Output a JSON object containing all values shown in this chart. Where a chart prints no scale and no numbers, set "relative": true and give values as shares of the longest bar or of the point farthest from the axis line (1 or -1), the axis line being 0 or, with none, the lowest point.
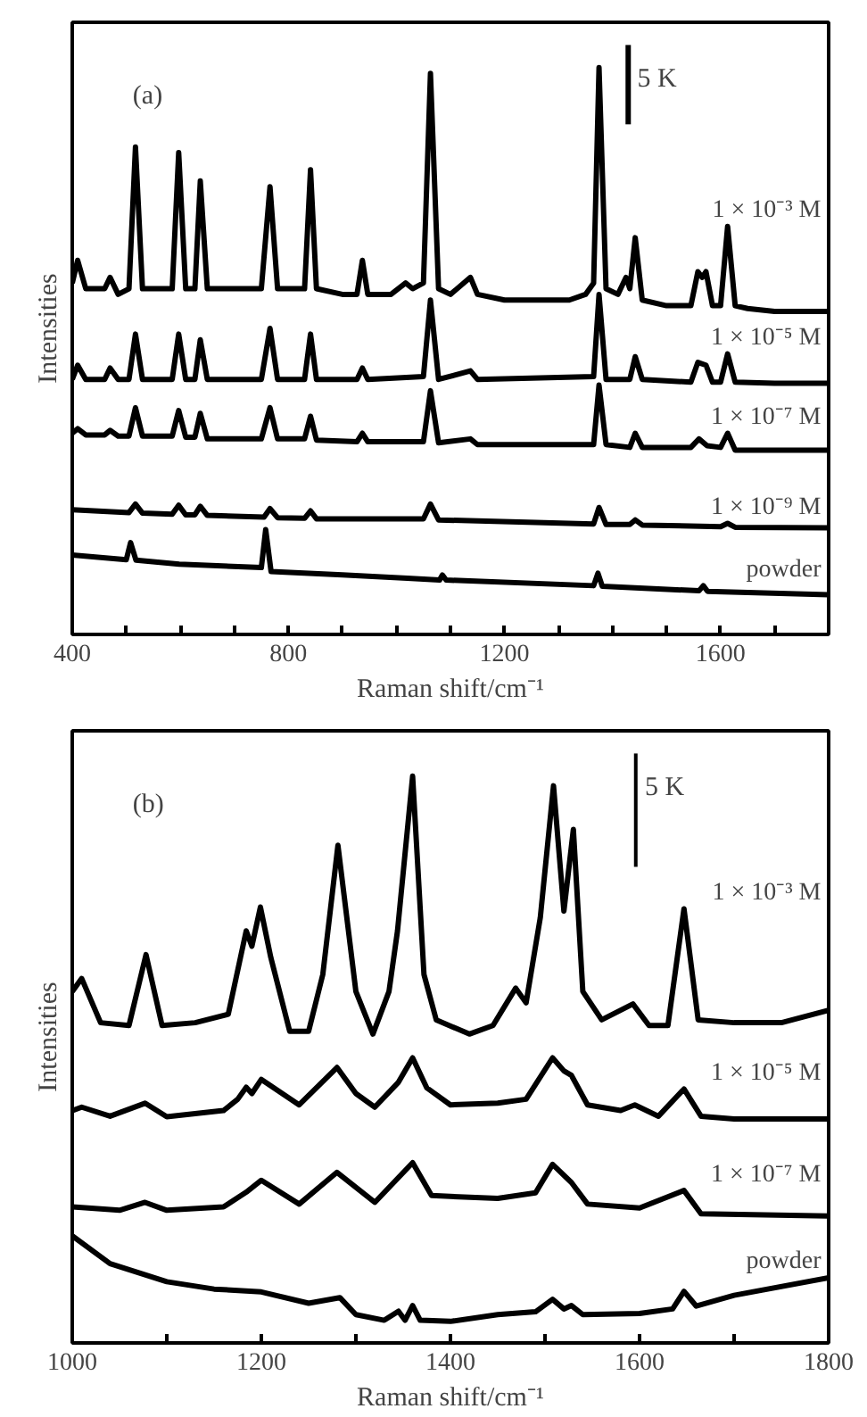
{
  "chart_data": [
    {
      "type": "line",
      "relative": true,
      "xlabel": "Raman shift/cm⁻¹",
      "ylabel": "Intensities",
      "xlim": [
        400,
        1800
      ],
      "tick_labels": "x",
      "grid": false,
      "annotations": [
        "(a)",
        "5 K"
      ],
      "xticks": [
        400,
        {
          "value": 500,
          "label": null
        },
        {
          "value": 600,
          "label": null
        },
        {
          "value": 700,
          "label": null
        },
        800,
        {
          "value": 900,
          "label": null
        },
        {
          "value": 1000,
          "label": null
        },
        {
          "value": 1100,
          "label": null
        },
        1200,
        {
          "value": 1300,
          "label": null
        },
        {
          "value": 1400,
          "label": null
        },
        {
          "value": 1500,
          "label": null
        },
        1600,
        {
          "value": 1700,
          "label": null
        }
      ],
      "series": [
        {
          "name": "1 × 10⁻³ M",
          "color": "#000000",
          "x": [
            400,
            410,
            425,
            460,
            470,
            485,
            505,
            517,
            530,
            585,
            597,
            610,
            627,
            637,
            650,
            700,
            750,
            766,
            780,
            800,
            830,
            841,
            852,
            900,
            927,
            937,
            947,
            990,
            1017,
            1030,
            1050,
            1063,
            1078,
            1100,
            1137,
            1150,
            1200,
            1250,
            1280,
            1320,
            1350,
            1365,
            1375,
            1388,
            1410,
            1425,
            1432,
            1442,
            1455,
            1500,
            1545,
            1558,
            1566,
            1573,
            1585,
            1600,
            1613,
            1627,
            1650,
            1700,
            1800
          ],
          "values": [
            0.62,
            0.66,
            0.61,
            0.61,
            0.63,
            0.6,
            0.61,
            0.86,
            0.61,
            0.61,
            0.85,
            0.61,
            0.61,
            0.8,
            0.61,
            0.61,
            0.61,
            0.79,
            0.61,
            0.61,
            0.61,
            0.82,
            0.61,
            0.6,
            0.6,
            0.66,
            0.6,
            0.6,
            0.62,
            0.61,
            0.62,
            0.99,
            0.61,
            0.6,
            0.63,
            0.6,
            0.59,
            0.59,
            0.59,
            0.59,
            0.6,
            0.62,
            1.0,
            0.61,
            0.6,
            0.63,
            0.61,
            0.7,
            0.59,
            0.58,
            0.58,
            0.64,
            0.63,
            0.64,
            0.58,
            0.58,
            0.72,
            0.58,
            0.575,
            0.57,
            0.57
          ]
        },
        {
          "name": "1 × 10⁻⁵ M",
          "color": "#000000",
          "x": [
            400,
            410,
            425,
            460,
            470,
            485,
            505,
            517,
            530,
            585,
            597,
            610,
            627,
            637,
            650,
            750,
            766,
            780,
            830,
            841,
            852,
            927,
            937,
            947,
            1050,
            1063,
            1078,
            1137,
            1150,
            1365,
            1375,
            1388,
            1432,
            1442,
            1455,
            1545,
            1558,
            1573,
            1585,
            1600,
            1613,
            1627,
            1700,
            1800
          ],
          "values": [
            0.45,
            0.475,
            0.45,
            0.45,
            0.47,
            0.45,
            0.45,
            0.53,
            0.45,
            0.45,
            0.53,
            0.45,
            0.45,
            0.52,
            0.45,
            0.45,
            0.54,
            0.45,
            0.45,
            0.53,
            0.45,
            0.45,
            0.47,
            0.45,
            0.455,
            0.59,
            0.45,
            0.465,
            0.45,
            0.455,
            0.6,
            0.45,
            0.45,
            0.49,
            0.45,
            0.445,
            0.48,
            0.475,
            0.445,
            0.445,
            0.495,
            0.445,
            0.443,
            0.443
          ]
        },
        {
          "name": "1 × 10⁻⁷ M",
          "color": "#000000",
          "x": [
            400,
            410,
            425,
            460,
            470,
            485,
            505,
            517,
            530,
            585,
            597,
            610,
            627,
            637,
            650,
            750,
            766,
            780,
            830,
            841,
            852,
            927,
            937,
            947,
            1050,
            1063,
            1078,
            1137,
            1150,
            1365,
            1375,
            1388,
            1432,
            1442,
            1455,
            1545,
            1560,
            1575,
            1600,
            1613,
            1627,
            1700,
            1800
          ],
          "values": [
            0.355,
            0.363,
            0.352,
            0.352,
            0.36,
            0.35,
            0.35,
            0.4,
            0.35,
            0.35,
            0.395,
            0.348,
            0.348,
            0.39,
            0.345,
            0.345,
            0.4,
            0.345,
            0.345,
            0.385,
            0.343,
            0.34,
            0.355,
            0.34,
            0.34,
            0.43,
            0.338,
            0.345,
            0.335,
            0.335,
            0.44,
            0.335,
            0.33,
            0.355,
            0.33,
            0.33,
            0.345,
            0.333,
            0.33,
            0.355,
            0.325,
            0.325,
            0.325
          ]
        },
        {
          "name": "1 × 10⁻⁹ M",
          "color": "#000000",
          "x": [
            400,
            505,
            517,
            530,
            585,
            597,
            610,
            627,
            637,
            650,
            755,
            766,
            780,
            830,
            841,
            852,
            1050,
            1063,
            1078,
            1365,
            1375,
            1388,
            1432,
            1442,
            1455,
            1600,
            1613,
            1627,
            1800
          ],
          "values": [
            0.22,
            0.215,
            0.23,
            0.214,
            0.212,
            0.228,
            0.211,
            0.211,
            0.226,
            0.21,
            0.207,
            0.222,
            0.206,
            0.205,
            0.218,
            0.204,
            0.204,
            0.23,
            0.202,
            0.195,
            0.224,
            0.194,
            0.194,
            0.202,
            0.193,
            0.19,
            0.196,
            0.189,
            0.188
          ]
        },
        {
          "name": "powder",
          "color": "#000000",
          "x": [
            400,
            500,
            508,
            518,
            598,
            750,
            758,
            768,
            900,
            1020,
            1080,
            1085,
            1092,
            1365,
            1373,
            1381,
            1560,
            1568,
            1576,
            1800
          ],
          "values": [
            0.14,
            0.132,
            0.162,
            0.131,
            0.124,
            0.118,
            0.185,
            0.111,
            0.105,
            0.099,
            0.096,
            0.105,
            0.096,
            0.086,
            0.108,
            0.085,
            0.077,
            0.086,
            0.076,
            0.07
          ]
        }
      ]
    },
    {
      "type": "line",
      "relative": true,
      "xlabel": "Raman shift/cm⁻¹",
      "ylabel": "Intensities",
      "xlim": [
        1000,
        1800
      ],
      "tick_labels": "x",
      "grid": false,
      "annotations": [
        "(b)",
        "5 K"
      ],
      "xticks": [
        1000,
        {
          "value": 1100,
          "label": null
        },
        1200,
        {
          "value": 1300,
          "label": null
        },
        1400,
        {
          "value": 1500,
          "label": null
        },
        1600,
        {
          "value": 1700,
          "label": null
        },
        1800
      ],
      "series": [
        {
          "name": "1 × 10⁻³ M",
          "color": "#000000",
          "x": [
            1000,
            1010,
            1030,
            1060,
            1078,
            1095,
            1130,
            1165,
            1184,
            1190,
            1199,
            1210,
            1230,
            1250,
            1265,
            1281,
            1300,
            1318,
            1335,
            1344,
            1360,
            1372,
            1385,
            1420,
            1445,
            1469,
            1480,
            1495,
            1509,
            1520,
            1530,
            1540,
            1560,
            1593,
            1610,
            1630,
            1647,
            1662,
            1700,
            1750,
            1800
          ],
          "values": [
            0.62,
            0.643,
            0.565,
            0.56,
            0.685,
            0.56,
            0.565,
            0.58,
            0.727,
            0.7,
            0.769,
            0.68,
            0.55,
            0.55,
            0.65,
            0.878,
            0.62,
            0.545,
            0.62,
            0.727,
            1.0,
            0.65,
            0.57,
            0.545,
            0.56,
            0.626,
            0.6,
            0.75,
            0.983,
            0.762,
            0.906,
            0.62,
            0.57,
            0.598,
            0.56,
            0.56,
            0.766,
            0.57,
            0.565,
            0.565,
            0.587
          ]
        },
        {
          "name": "1 × 10⁻⁵ M",
          "color": "#000000",
          "x": [
            1000,
            1010,
            1040,
            1077,
            1100,
            1160,
            1175,
            1184,
            1190,
            1200,
            1240,
            1280,
            1300,
            1320,
            1345,
            1360,
            1375,
            1400,
            1450,
            1480,
            1508,
            1520,
            1528,
            1545,
            1580,
            1595,
            1620,
            1647,
            1665,
            1700,
            1800
          ],
          "values": [
            0.41,
            0.416,
            0.4,
            0.423,
            0.399,
            0.41,
            0.43,
            0.451,
            0.44,
            0.465,
            0.42,
            0.486,
            0.44,
            0.416,
            0.46,
            0.503,
            0.45,
            0.42,
            0.423,
            0.43,
            0.503,
            0.48,
            0.472,
            0.42,
            0.41,
            0.42,
            0.4,
            0.448,
            0.4,
            0.395,
            0.395
          ]
        },
        {
          "name": "1 × 10⁻⁷ M",
          "color": "#000000",
          "x": [
            1000,
            1050,
            1077,
            1100,
            1160,
            1184,
            1200,
            1240,
            1280,
            1320,
            1360,
            1380,
            1450,
            1490,
            1508,
            1528,
            1545,
            1600,
            1647,
            1665,
            1800
          ],
          "values": [
            0.24,
            0.234,
            0.248,
            0.234,
            0.24,
            0.266,
            0.287,
            0.245,
            0.301,
            0.248,
            0.318,
            0.26,
            0.255,
            0.265,
            0.315,
            0.283,
            0.245,
            0.238,
            0.269,
            0.228,
            0.224
          ]
        },
        {
          "name": "powder",
          "color": "#000000",
          "x": [
            1000,
            1040,
            1100,
            1150,
            1200,
            1250,
            1283,
            1300,
            1330,
            1345,
            1352,
            1360,
            1368,
            1400,
            1450,
            1490,
            1508,
            1520,
            1528,
            1540,
            1600,
            1635,
            1647,
            1660,
            1700,
            1800
          ],
          "values": [
            0.189,
            0.14,
            0.108,
            0.095,
            0.09,
            0.07,
            0.08,
            0.05,
            0.04,
            0.056,
            0.04,
            0.066,
            0.04,
            0.038,
            0.05,
            0.055,
            0.077,
            0.06,
            0.066,
            0.05,
            0.052,
            0.06,
            0.091,
            0.065,
            0.084,
            0.115
          ]
        }
      ]
    }
  ]
}
